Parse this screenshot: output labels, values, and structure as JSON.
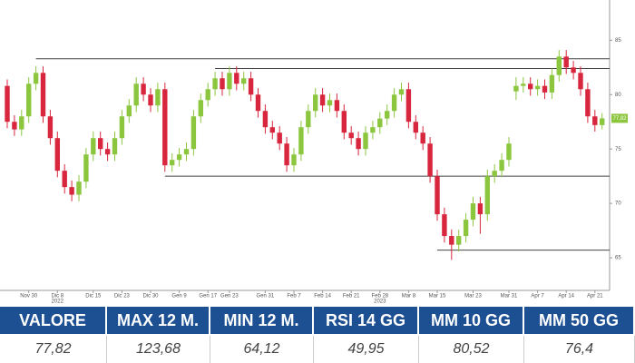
{
  "chart_data": {
    "type": "candlestick",
    "categories": [
      null,
      null,
      null,
      "Nov 30",
      null,
      null,
      null,
      "Dic 8",
      null,
      null,
      null,
      null,
      "Dic 15",
      null,
      null,
      null,
      "Dic 23",
      null,
      null,
      null,
      "Dic 30",
      null,
      null,
      null,
      "Gen 9",
      null,
      null,
      null,
      "Gen 17",
      null,
      null,
      "Gen 23",
      null,
      null,
      null,
      null,
      "Gen 31",
      null,
      null,
      null,
      "Feb 7",
      null,
      null,
      null,
      "Feb 14",
      null,
      null,
      null,
      "Feb 21",
      null,
      null,
      null,
      "Feb 28",
      null,
      null,
      null,
      "Mar 8",
      null,
      null,
      null,
      "Mar 15",
      null,
      null,
      null,
      null,
      "Mar 23",
      null,
      null,
      null,
      null,
      "Mar 31",
      null,
      null,
      null,
      "Apr 7",
      null,
      null,
      null,
      "Apr 14",
      null,
      null,
      null,
      "Apr 21",
      null
    ],
    "category_years": [
      null,
      null,
      null,
      null,
      null,
      null,
      null,
      "2022",
      null,
      null,
      null,
      null,
      null,
      null,
      null,
      null,
      null,
      null,
      null,
      null,
      null,
      null,
      null,
      null,
      null,
      null,
      null,
      null,
      null,
      null,
      null,
      null,
      null,
      null,
      null,
      null,
      null,
      null,
      null,
      null,
      null,
      null,
      null,
      null,
      null,
      null,
      null,
      null,
      null,
      null,
      null,
      null,
      "2023",
      null,
      null,
      null,
      null,
      null,
      null,
      null,
      null,
      null,
      null,
      null,
      null,
      null,
      null,
      null,
      null,
      null,
      null,
      null,
      null,
      null,
      null,
      null,
      null,
      null,
      null,
      null,
      null,
      null,
      null,
      null
    ],
    "open": [
      80.8,
      77.5,
      76.8,
      78,
      81,
      82,
      78,
      76,
      73,
      71.5,
      70.8,
      72,
      74.5,
      76,
      75,
      74.5,
      76,
      78,
      79,
      81,
      80,
      79,
      80.5,
      73.5,
      74,
      74.5,
      75,
      78,
      79.5,
      80.5,
      81.5,
      80.5,
      82,
      81,
      81.5,
      80,
      78.5,
      77,
      76.5,
      75.5,
      73.5,
      74.5,
      77,
      78.5,
      80,
      79,
      79.5,
      78.5,
      76.5,
      76,
      75,
      76.5,
      77,
      77.8,
      78.5,
      80,
      80.5,
      77.5,
      76.5,
      75.5,
      72.5,
      69,
      67,
      66.2,
      67,
      68.5,
      70,
      69,
      72.5,
      73,
      74,
      80.3,
      80.8,
      81,
      80.5,
      80.8,
      80.2,
      81.8,
      83.5,
      82.5,
      82,
      80.5,
      78,
      77.2
    ],
    "high": [
      81.4,
      78.1,
      78.6,
      81.6,
      82.6,
      82.6,
      78.6,
      76.6,
      73.6,
      72.1,
      72.6,
      75.1,
      76.6,
      76.6,
      75.6,
      76.6,
      78.6,
      79.6,
      81.6,
      81.6,
      80.6,
      81.1,
      81.1,
      74.6,
      75.1,
      75.6,
      78.6,
      80.1,
      81.1,
      82.1,
      82.1,
      82.6,
      82.6,
      82.1,
      82.1,
      80.6,
      79.1,
      77.6,
      77.1,
      76.1,
      75.1,
      77.6,
      79.1,
      80.6,
      80.6,
      80.1,
      80.1,
      79.1,
      77.1,
      76.6,
      77.1,
      77.6,
      78.4,
      79.1,
      80.6,
      81.1,
      81.1,
      78.1,
      77.1,
      76.1,
      73.1,
      69.6,
      67.6,
      67.6,
      69.1,
      70.6,
      70.6,
      73.1,
      73.6,
      74.6,
      76.1,
      81.6,
      81.6,
      81.6,
      81.4,
      81.4,
      82.4,
      84.1,
      84.1,
      83.1,
      82.6,
      81.1,
      78.6,
      78.3
    ],
    "low": [
      76.9,
      76.2,
      76.2,
      77.4,
      80.4,
      77.4,
      75.4,
      72.4,
      70.9,
      70.2,
      70.2,
      71.4,
      73.9,
      74.4,
      73.9,
      73.9,
      75.4,
      77.4,
      78.4,
      79.4,
      78.4,
      78.4,
      72.9,
      72.9,
      73.4,
      73.9,
      74.4,
      77.4,
      78.9,
      79.9,
      79.9,
      79.9,
      80.4,
      80.4,
      79.4,
      77.9,
      76.4,
      75.9,
      74.9,
      72.9,
      72.9,
      73.9,
      76.4,
      77.9,
      78.4,
      78.4,
      77.9,
      75.9,
      75.4,
      74.4,
      74.4,
      75.9,
      76.4,
      77.2,
      77.9,
      79.4,
      76.9,
      75.9,
      74.9,
      71.9,
      68.4,
      66.4,
      64.8,
      65.6,
      66.4,
      67.9,
      67.2,
      68.4,
      71.9,
      72.4,
      73.4,
      79.5,
      80.2,
      79.9,
      79.9,
      79.6,
      79.6,
      81.2,
      81.9,
      81.4,
      79.9,
      77.4,
      76.6,
      76.8
    ],
    "close": [
      77.5,
      76.8,
      78,
      81,
      82,
      78,
      76,
      73,
      71.5,
      70.8,
      72,
      74.5,
      76,
      75,
      74.5,
      76,
      78,
      79,
      81,
      80,
      79,
      80.5,
      73.5,
      74,
      74.5,
      75,
      78,
      79.5,
      80.5,
      81.5,
      80.5,
      82,
      81,
      81.5,
      80,
      78.5,
      77,
      76.5,
      75.5,
      73.5,
      74.5,
      77,
      78.5,
      80,
      79,
      79.5,
      78.5,
      76.5,
      76,
      75,
      76.5,
      77,
      77.8,
      78.5,
      80,
      80.5,
      77.5,
      76.5,
      75.5,
      72.5,
      69,
      67,
      66.2,
      67,
      68.5,
      70,
      69,
      72.5,
      73,
      74,
      75.5,
      80.8,
      81,
      80.5,
      80.8,
      80.2,
      81.8,
      83.5,
      82.5,
      82,
      80.5,
      78,
      77.2,
      77.82
    ],
    "up_color": "#8cc63f",
    "down_color": "#d7263d",
    "hlines": [
      {
        "value": 83.3,
        "from": 4
      },
      {
        "value": 82.4,
        "from": 29
      },
      {
        "value": 72.5,
        "from": 22
      },
      {
        "value": 65.7,
        "from": 60
      }
    ],
    "last_price": {
      "value": 77.82,
      "label": "77,82"
    },
    "ylim": [
      62,
      88.7
    ],
    "yticks": [
      65,
      70,
      75,
      80,
      85
    ]
  },
  "table": {
    "headers": [
      "VALORE",
      "MAX 12 M.",
      "MIN 12 M.",
      "RSI 14 GG",
      "MM 10 GG",
      "MM 50 GG"
    ],
    "values": [
      "77,82",
      "123,68",
      "64,12",
      "49,95",
      "80,52",
      "76,4"
    ]
  }
}
